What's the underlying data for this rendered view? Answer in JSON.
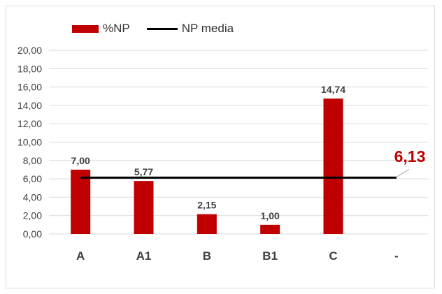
{
  "chart_data": {
    "type": "bar",
    "categories": [
      "A",
      "A1",
      "B",
      "B1",
      "C",
      "-"
    ],
    "series": [
      {
        "name": "%NP",
        "values": [
          7.0,
          5.77,
          2.15,
          1.0,
          14.74,
          null
        ],
        "value_labels": [
          "7,00",
          "5,77",
          "2,15",
          "1,00",
          "14,74",
          ""
        ],
        "color": "#c00000"
      }
    ],
    "reference_line": {
      "name": "NP media",
      "value": 6.13,
      "label": "6,13",
      "color": "#000000",
      "label_color": "#c00000"
    },
    "ylim": [
      0,
      20
    ],
    "y_ticks": [
      "0,00",
      "2,00",
      "4,00",
      "6,00",
      "8,00",
      "10,00",
      "12,00",
      "14,00",
      "16,00",
      "18,00",
      "20,00"
    ],
    "grid": true,
    "legend_position": "top-left",
    "title": "",
    "xlabel": "",
    "ylabel": ""
  }
}
